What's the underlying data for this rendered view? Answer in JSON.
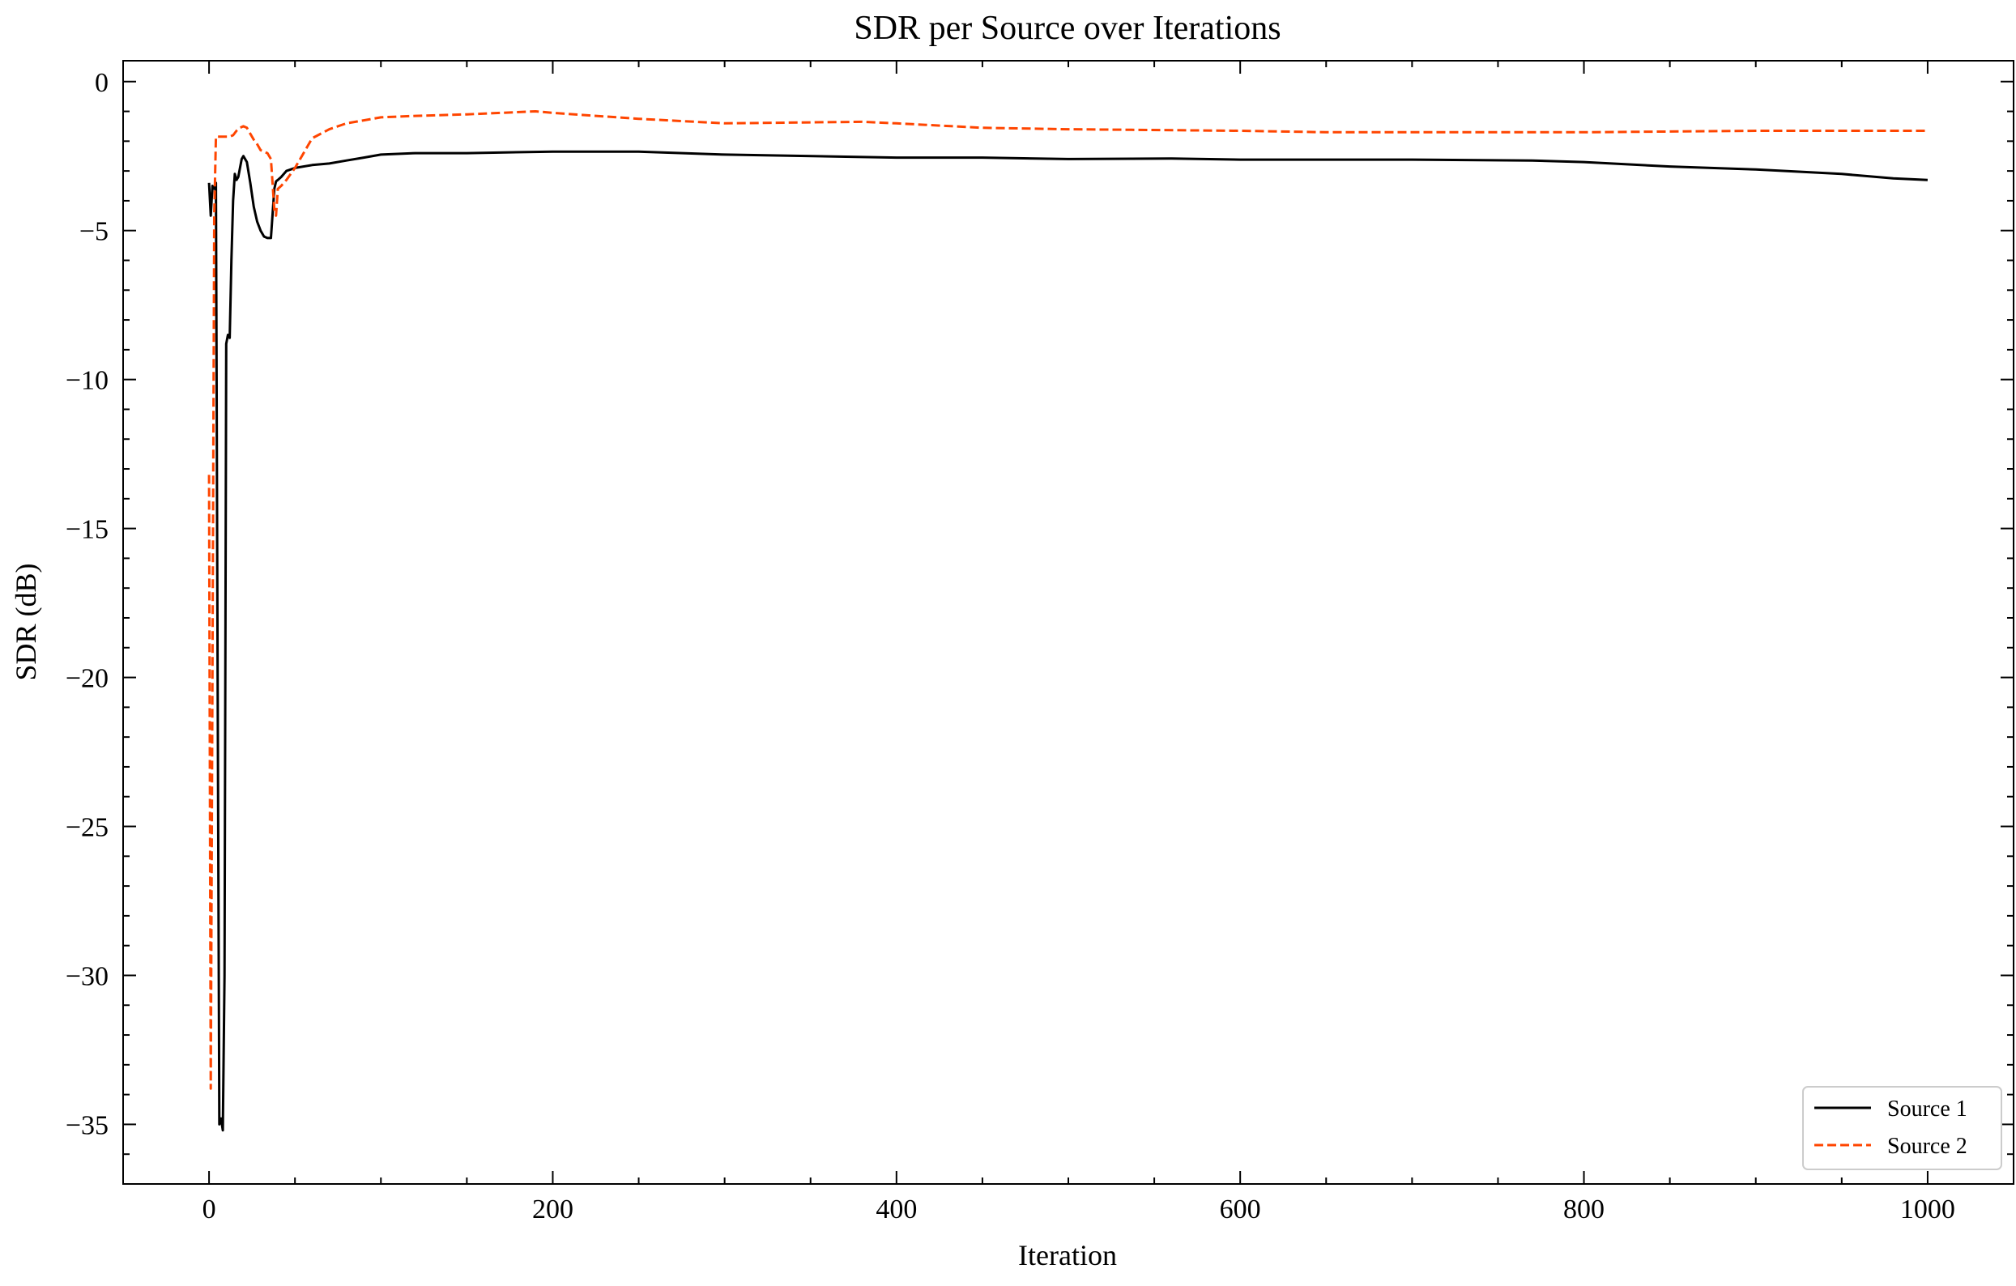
{
  "chart_data": {
    "type": "line",
    "title": "SDR per Source over Iterations",
    "xlabel": "Iteration",
    "ylabel": "SDR (dB)",
    "xlim": [
      -50,
      1050
    ],
    "ylim": [
      -37,
      0.7
    ],
    "xticks": [
      0,
      200,
      400,
      600,
      800,
      1000
    ],
    "xtick_labels": [
      "0",
      "200",
      "400",
      "600",
      "800",
      "1000"
    ],
    "yticks": [
      0,
      -5,
      -10,
      -15,
      -20,
      -25,
      -30,
      -35
    ],
    "ytick_labels": [
      "0",
      "−5",
      "−10",
      "−15",
      "−20",
      "−25",
      "−30",
      "−35"
    ],
    "grid": false,
    "legend_position": "bottom-right",
    "series": [
      {
        "name": "Source 1",
        "color": "#000000",
        "style": "solid",
        "x": [
          0,
          1,
          2,
          3,
          4,
          5,
          6,
          7,
          8,
          9,
          10,
          11,
          12,
          13,
          14,
          15,
          16,
          17,
          18,
          19,
          20,
          22,
          24,
          26,
          28,
          30,
          32,
          34,
          36,
          38,
          39,
          40,
          42,
          45,
          50,
          60,
          70,
          80,
          90,
          100,
          120,
          150,
          200,
          250,
          300,
          400,
          450,
          500,
          560,
          600,
          700,
          770,
          800,
          850,
          900,
          950,
          980,
          1000
        ],
        "y": [
          -3.4,
          -4.5,
          -3.5,
          -3.6,
          -3.4,
          -20.0,
          -35.0,
          -34.8,
          -35.2,
          -30.0,
          -8.8,
          -8.5,
          -8.6,
          -6.0,
          -4.0,
          -3.1,
          -3.3,
          -3.2,
          -2.9,
          -2.6,
          -2.5,
          -2.7,
          -3.4,
          -4.2,
          -4.7,
          -5.0,
          -5.2,
          -5.25,
          -5.25,
          -3.6,
          -3.35,
          -3.3,
          -3.2,
          -3.0,
          -2.9,
          -2.8,
          -2.75,
          -2.65,
          -2.55,
          -2.45,
          -2.4,
          -2.4,
          -2.35,
          -2.35,
          -2.45,
          -2.55,
          -2.55,
          -2.6,
          -2.58,
          -2.62,
          -2.62,
          -2.65,
          -2.7,
          -2.85,
          -2.95,
          -3.1,
          -3.25,
          -3.3
        ]
      },
      {
        "name": "Source 2",
        "color": "#ff4500",
        "style": "dashed",
        "x": [
          0,
          1,
          2,
          3,
          4,
          5,
          6,
          8,
          10,
          12,
          14,
          16,
          18,
          20,
          22,
          24,
          26,
          28,
          30,
          34,
          36,
          38,
          39,
          40,
          42,
          45,
          50,
          55,
          60,
          70,
          80,
          90,
          100,
          120,
          150,
          190,
          200,
          250,
          300,
          380,
          400,
          450,
          500,
          600,
          650,
          800,
          900,
          1000
        ],
        "y": [
          -13.2,
          -33.8,
          -20.0,
          -4.5,
          -1.85,
          -1.85,
          -1.85,
          -1.85,
          -1.85,
          -1.85,
          -1.8,
          -1.65,
          -1.55,
          -1.5,
          -1.55,
          -1.75,
          -1.95,
          -2.1,
          -2.3,
          -2.4,
          -2.6,
          -4.3,
          -4.5,
          -3.6,
          -3.5,
          -3.3,
          -2.9,
          -2.4,
          -1.9,
          -1.6,
          -1.4,
          -1.3,
          -1.2,
          -1.15,
          -1.1,
          -1.0,
          -1.05,
          -1.25,
          -1.4,
          -1.35,
          -1.4,
          -1.55,
          -1.6,
          -1.65,
          -1.7,
          -1.7,
          -1.65,
          -1.65
        ]
      }
    ]
  }
}
